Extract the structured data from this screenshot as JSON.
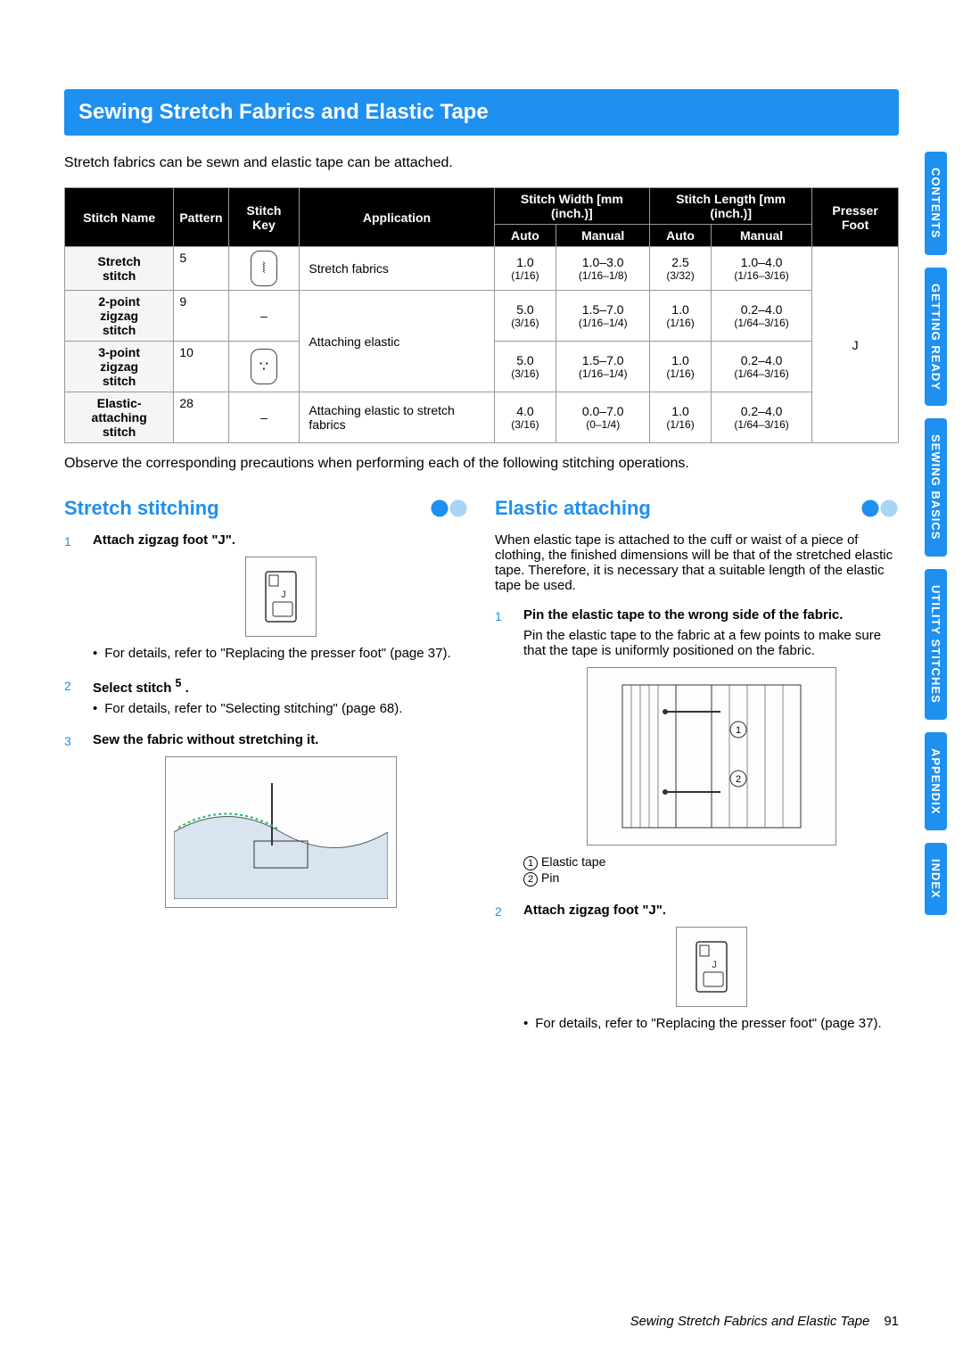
{
  "title": "Sewing Stretch Fabrics and Elastic Tape",
  "intro": "Stretch fabrics can be sewn and elastic tape can be attached.",
  "table": {
    "headers": {
      "name": "Stitch Name",
      "pattern": "Pattern",
      "key": "Stitch Key",
      "app": "Application",
      "width_group": "Stitch Width [mm (inch.)]",
      "length_group": "Stitch Length [mm (inch.)]",
      "foot": "Presser Foot",
      "auto": "Auto",
      "manual": "Manual"
    },
    "rows": [
      {
        "name": "Stretch stitch",
        "pattern": "5",
        "key": "⦚",
        "app": "Stretch fabrics",
        "w_auto": "1.0",
        "w_auto2": "(1/16)",
        "w_man": "1.0–3.0",
        "w_man2": "(1/16–1/8)",
        "l_auto": "2.5",
        "l_auto2": "(3/32)",
        "l_man": "1.0–4.0",
        "l_man2": "(1/16–3/16)"
      },
      {
        "name": "2-point zigzag stitch",
        "pattern": "9",
        "key": "–",
        "app": "Attaching elastic",
        "app_rowspan": 2,
        "w_auto": "5.0",
        "w_auto2": "(3/16)",
        "w_man": "1.5–7.0",
        "w_man2": "(1/16–1/4)",
        "l_auto": "1.0",
        "l_auto2": "(1/16)",
        "l_man": "0.2–4.0",
        "l_man2": "(1/64–3/16)"
      },
      {
        "name": "3-point zigzag stitch",
        "pattern": "10",
        "key": "∵",
        "app": null,
        "w_auto": "5.0",
        "w_auto2": "(3/16)",
        "w_man": "1.5–7.0",
        "w_man2": "(1/16–1/4)",
        "l_auto": "1.0",
        "l_auto2": "(1/16)",
        "l_man": "0.2–4.0",
        "l_man2": "(1/64–3/16)"
      },
      {
        "name": "Elastic-attaching stitch",
        "pattern": "28",
        "key": "–",
        "app": "Attaching elastic to stretch fabrics",
        "w_auto": "4.0",
        "w_auto2": "(3/16)",
        "w_man": "0.0–7.0",
        "w_man2": "(0–1/4)",
        "l_auto": "1.0",
        "l_auto2": "(1/16)",
        "l_man": "0.2–4.0",
        "l_man2": "(1/64–3/16)"
      }
    ],
    "foot_value": "J"
  },
  "observe": "Observe the corresponding precautions when performing each of the following stitching operations.",
  "left": {
    "heading": "Stretch stitching",
    "step1_title": "Attach zigzag foot \"J\".",
    "step1_bullet": "For details, refer to \"Replacing the presser foot\" (page 37).",
    "step2_title_a": "Select stitch ",
    "step2_title_b": "5",
    "step2_title_c": " .",
    "step2_bullet": "For details, refer to \"Selecting stitching\" (page 68).",
    "step3_title": "Sew the fabric without stretching it."
  },
  "right": {
    "heading": "Elastic attaching",
    "intro": "When elastic tape is attached to the cuff or waist of a piece of clothing, the finished dimensions will be that of the stretched elastic tape. Therefore, it is necessary that a suitable length of the elastic tape be used.",
    "step1_title": "Pin the elastic tape to the wrong side of the fabric.",
    "step1_body": "Pin the elastic tape to the fabric at a few points to make sure that the tape is uniformly positioned on the fabric.",
    "legend1": "Elastic tape",
    "legend2": "Pin",
    "step2_title": "Attach zigzag foot \"J\".",
    "step2_bullet": "For details, refer to \"Replacing the presser foot\" (page 37)."
  },
  "tabs": [
    "CONTENTS",
    "GETTING READY",
    "SEWING BASICS",
    "UTILITY STITCHES",
    "APPENDIX",
    "INDEX"
  ],
  "footer_title": "Sewing Stretch Fabrics and Elastic Tape",
  "page_num": "91"
}
